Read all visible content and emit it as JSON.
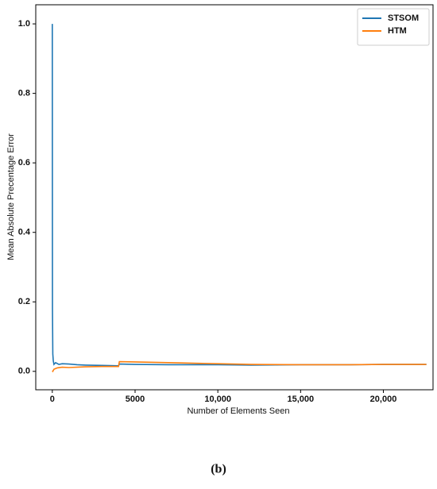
{
  "chart_data": {
    "type": "line",
    "x_label": "Number of Elements Seen",
    "y_label": "Mean Absolute Precentage Error",
    "caption": "(b)",
    "xlim": [
      -1000,
      23000
    ],
    "xticks": [
      0,
      5000,
      {
        "value": 10000,
        "label": "10,000"
      },
      {
        "value": 15000,
        "label": "15,000"
      },
      {
        "value": 20000,
        "label": "20,000"
      }
    ],
    "ylim": [
      -0.053,
      1.055
    ],
    "yticks": [
      {
        "value": 0,
        "label": "0.0"
      },
      0.2,
      0.4,
      0.6,
      0.8,
      {
        "value": 1,
        "label": "1.0"
      }
    ],
    "legend": "upper right",
    "series": [
      {
        "name": "STSOM",
        "color": "#1f77b4",
        "x": [
          0,
          10,
          30,
          60,
          100,
          200,
          400,
          600,
          1000,
          1500,
          2000,
          3000,
          4000,
          4050,
          5000,
          7000,
          10000,
          12000,
          15000,
          18000,
          20000,
          22600
        ],
        "values": [
          1.0,
          0.18,
          0.05,
          0.03,
          0.02,
          0.025,
          0.02,
          0.022,
          0.021,
          0.019,
          0.018,
          0.017,
          0.016,
          0.021,
          0.02,
          0.019,
          0.019,
          0.018,
          0.019,
          0.019,
          0.02,
          0.02
        ]
      },
      {
        "name": "HTM",
        "color": "#ff7f0e",
        "x": [
          0,
          30,
          100,
          300,
          600,
          1000,
          2000,
          3000,
          4000,
          4050,
          5000,
          7000,
          10000,
          12000,
          15000,
          18000,
          20000,
          22600
        ],
        "values": [
          0.002,
          0.0,
          0.006,
          0.01,
          0.012,
          0.011,
          0.013,
          0.014,
          0.014,
          0.028,
          0.027,
          0.025,
          0.022,
          0.02,
          0.019,
          0.019,
          0.02,
          0.02
        ]
      }
    ]
  }
}
